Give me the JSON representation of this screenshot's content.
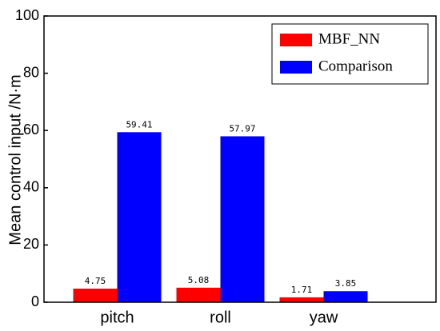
{
  "chart_data": {
    "type": "bar",
    "y_label": "Mean control input /N·m",
    "categories": [
      "pitch",
      "roll",
      "yaw"
    ],
    "series": [
      {
        "name": "MBF_NN",
        "color": "#ff0000",
        "values": [
          4.75,
          5.08,
          1.71
        ]
      },
      {
        "name": "Comparison",
        "color": "#0000ff",
        "values": [
          59.41,
          57.97,
          3.85
        ]
      }
    ],
    "ylim": [
      0,
      100
    ],
    "yticks": [
      0,
      20,
      40,
      60,
      80,
      100
    ],
    "legend": "upper right"
  }
}
